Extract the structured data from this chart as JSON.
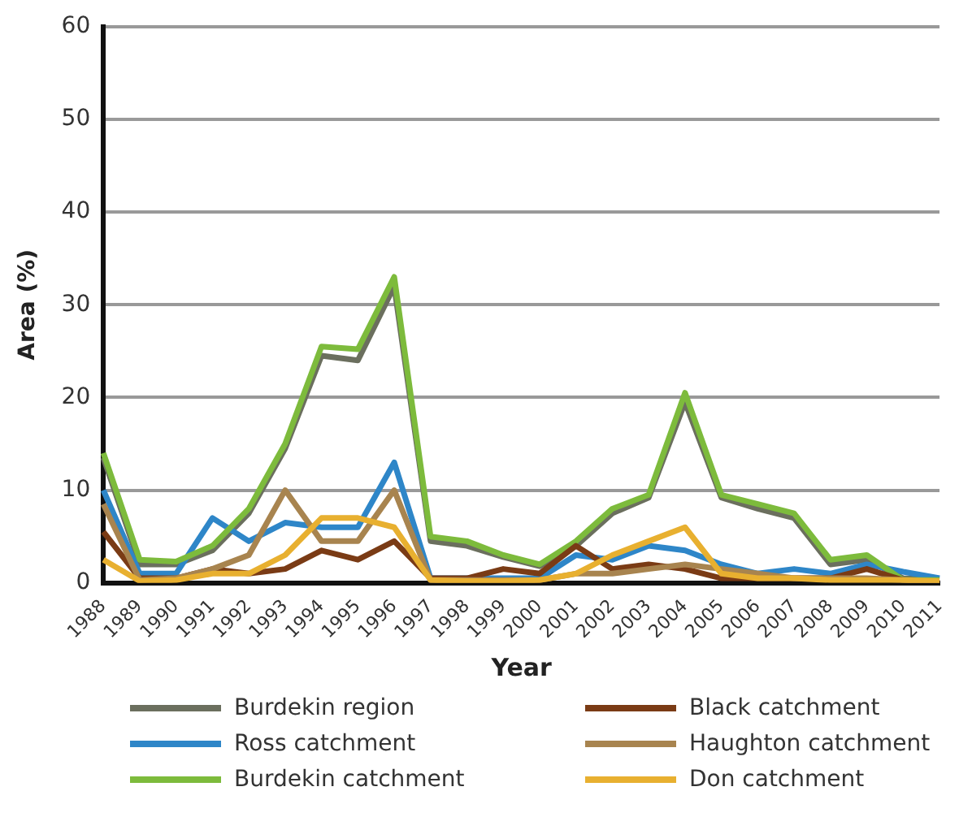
{
  "chart_data": {
    "type": "line",
    "xlabel": "Year",
    "ylabel": "Area (%)",
    "categories": [
      "1988",
      "1989",
      "1990",
      "1991",
      "1992",
      "1993",
      "1994",
      "1995",
      "1996",
      "1997",
      "1998",
      "1999",
      "2000",
      "2001",
      "2002",
      "2003",
      "2004",
      "2005",
      "2006",
      "2007",
      "2008",
      "2009",
      "2010",
      "2011"
    ],
    "series": [
      {
        "name": "Burdekin region",
        "color": "#6b6f5e",
        "values": [
          13.5,
          2,
          2,
          3.5,
          7.5,
          14.5,
          24.5,
          24,
          32,
          4.5,
          4,
          2.8,
          1.8,
          4,
          7.5,
          9.2,
          19.5,
          9.2,
          8,
          7,
          2,
          2.5,
          0.5,
          0.3
        ]
      },
      {
        "name": "Ross catchment",
        "color": "#2e86c8",
        "values": [
          10,
          1,
          1,
          7,
          4.5,
          6.5,
          6,
          6,
          13,
          0.5,
          0.5,
          0.5,
          0.5,
          3,
          2.5,
          4,
          3.5,
          2,
          1,
          1.5,
          1,
          2,
          1.2,
          0.5
        ]
      },
      {
        "name": "Burdekin catchment",
        "color": "#7dbb3c",
        "values": [
          14,
          2.5,
          2.3,
          4,
          8,
          15,
          25.5,
          25.2,
          33,
          5,
          4.5,
          3,
          2,
          4.5,
          8,
          9.5,
          20.5,
          9.5,
          8.5,
          7.5,
          2.5,
          3,
          0.3,
          0.3
        ]
      },
      {
        "name": "Black catchment",
        "color": "#7a3b15",
        "values": [
          5.5,
          0.5,
          0.5,
          1.5,
          1,
          1.5,
          3.5,
          2.5,
          4.5,
          0.5,
          0.5,
          1.5,
          1,
          4,
          1.5,
          2,
          1.5,
          0.5,
          0.5,
          0.5,
          0.5,
          1.5,
          0.3,
          0
        ]
      },
      {
        "name": "Haughton catchment",
        "color": "#a8844f",
        "values": [
          8.5,
          0.3,
          0.5,
          1.5,
          3,
          10,
          4.5,
          4.5,
          10,
          0.3,
          0.3,
          0.3,
          0.3,
          1,
          1,
          1.5,
          2,
          1.5,
          1,
          0.5,
          0.5,
          0.5,
          0.3,
          0
        ]
      },
      {
        "name": "Don catchment",
        "color": "#e8b030",
        "values": [
          2.5,
          0.2,
          0.3,
          1,
          1,
          3,
          7,
          7,
          6,
          0.3,
          0.2,
          0.2,
          0.3,
          1,
          3,
          4.5,
          6,
          1,
          0.5,
          0.5,
          0.3,
          0.3,
          0.3,
          0.2
        ]
      }
    ],
    "ylim": [
      0,
      60
    ],
    "yticks": [
      0,
      10,
      20,
      30,
      40,
      50,
      60
    ],
    "grid": "y",
    "legend": "bottom",
    "marker": "none",
    "line_style": "solid"
  }
}
